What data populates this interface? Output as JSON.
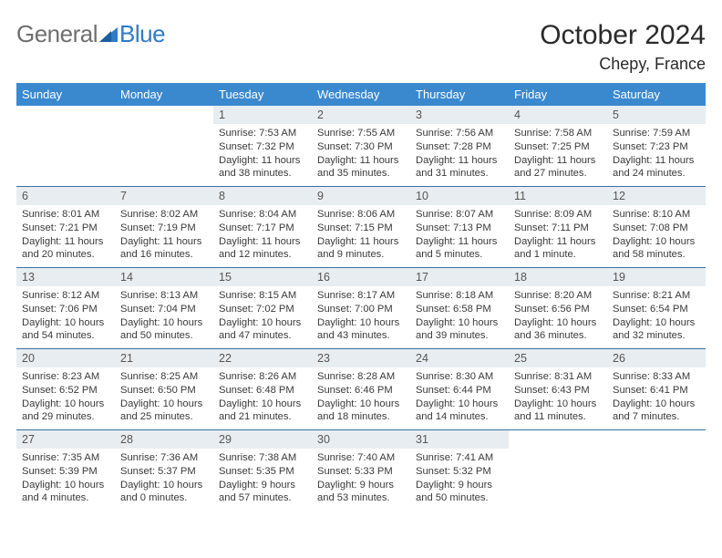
{
  "logo": {
    "g": "General",
    "b": "Blue"
  },
  "title": "October 2024",
  "location": "Chepy, France",
  "colors": {
    "header_bg": "#3a89cf",
    "header_fg": "#ffffff",
    "daynum_bg": "#e8edf1",
    "row_border": "#3a6fa0",
    "logo_gray": "#6f6f6f",
    "logo_blue": "#2f7bc6"
  },
  "weekdays": [
    "Sunday",
    "Monday",
    "Tuesday",
    "Wednesday",
    "Thursday",
    "Friday",
    "Saturday"
  ],
  "weeks": [
    [
      null,
      null,
      {
        "n": "1",
        "sr": "7:53 AM",
        "ss": "7:32 PM",
        "dl": "11 hours and 38 minutes."
      },
      {
        "n": "2",
        "sr": "7:55 AM",
        "ss": "7:30 PM",
        "dl": "11 hours and 35 minutes."
      },
      {
        "n": "3",
        "sr": "7:56 AM",
        "ss": "7:28 PM",
        "dl": "11 hours and 31 minutes."
      },
      {
        "n": "4",
        "sr": "7:58 AM",
        "ss": "7:25 PM",
        "dl": "11 hours and 27 minutes."
      },
      {
        "n": "5",
        "sr": "7:59 AM",
        "ss": "7:23 PM",
        "dl": "11 hours and 24 minutes."
      }
    ],
    [
      {
        "n": "6",
        "sr": "8:01 AM",
        "ss": "7:21 PM",
        "dl": "11 hours and 20 minutes."
      },
      {
        "n": "7",
        "sr": "8:02 AM",
        "ss": "7:19 PM",
        "dl": "11 hours and 16 minutes."
      },
      {
        "n": "8",
        "sr": "8:04 AM",
        "ss": "7:17 PM",
        "dl": "11 hours and 12 minutes."
      },
      {
        "n": "9",
        "sr": "8:06 AM",
        "ss": "7:15 PM",
        "dl": "11 hours and 9 minutes."
      },
      {
        "n": "10",
        "sr": "8:07 AM",
        "ss": "7:13 PM",
        "dl": "11 hours and 5 minutes."
      },
      {
        "n": "11",
        "sr": "8:09 AM",
        "ss": "7:11 PM",
        "dl": "11 hours and 1 minute."
      },
      {
        "n": "12",
        "sr": "8:10 AM",
        "ss": "7:08 PM",
        "dl": "10 hours and 58 minutes."
      }
    ],
    [
      {
        "n": "13",
        "sr": "8:12 AM",
        "ss": "7:06 PM",
        "dl": "10 hours and 54 minutes."
      },
      {
        "n": "14",
        "sr": "8:13 AM",
        "ss": "7:04 PM",
        "dl": "10 hours and 50 minutes."
      },
      {
        "n": "15",
        "sr": "8:15 AM",
        "ss": "7:02 PM",
        "dl": "10 hours and 47 minutes."
      },
      {
        "n": "16",
        "sr": "8:17 AM",
        "ss": "7:00 PM",
        "dl": "10 hours and 43 minutes."
      },
      {
        "n": "17",
        "sr": "8:18 AM",
        "ss": "6:58 PM",
        "dl": "10 hours and 39 minutes."
      },
      {
        "n": "18",
        "sr": "8:20 AM",
        "ss": "6:56 PM",
        "dl": "10 hours and 36 minutes."
      },
      {
        "n": "19",
        "sr": "8:21 AM",
        "ss": "6:54 PM",
        "dl": "10 hours and 32 minutes."
      }
    ],
    [
      {
        "n": "20",
        "sr": "8:23 AM",
        "ss": "6:52 PM",
        "dl": "10 hours and 29 minutes."
      },
      {
        "n": "21",
        "sr": "8:25 AM",
        "ss": "6:50 PM",
        "dl": "10 hours and 25 minutes."
      },
      {
        "n": "22",
        "sr": "8:26 AM",
        "ss": "6:48 PM",
        "dl": "10 hours and 21 minutes."
      },
      {
        "n": "23",
        "sr": "8:28 AM",
        "ss": "6:46 PM",
        "dl": "10 hours and 18 minutes."
      },
      {
        "n": "24",
        "sr": "8:30 AM",
        "ss": "6:44 PM",
        "dl": "10 hours and 14 minutes."
      },
      {
        "n": "25",
        "sr": "8:31 AM",
        "ss": "6:43 PM",
        "dl": "10 hours and 11 minutes."
      },
      {
        "n": "26",
        "sr": "8:33 AM",
        "ss": "6:41 PM",
        "dl": "10 hours and 7 minutes."
      }
    ],
    [
      {
        "n": "27",
        "sr": "7:35 AM",
        "ss": "5:39 PM",
        "dl": "10 hours and 4 minutes."
      },
      {
        "n": "28",
        "sr": "7:36 AM",
        "ss": "5:37 PM",
        "dl": "10 hours and 0 minutes."
      },
      {
        "n": "29",
        "sr": "7:38 AM",
        "ss": "5:35 PM",
        "dl": "9 hours and 57 minutes."
      },
      {
        "n": "30",
        "sr": "7:40 AM",
        "ss": "5:33 PM",
        "dl": "9 hours and 53 minutes."
      },
      {
        "n": "31",
        "sr": "7:41 AM",
        "ss": "5:32 PM",
        "dl": "9 hours and 50 minutes."
      },
      null,
      null
    ]
  ],
  "labels": {
    "sunrise": "Sunrise: ",
    "sunset": "Sunset: ",
    "daylight": "Daylight: "
  }
}
